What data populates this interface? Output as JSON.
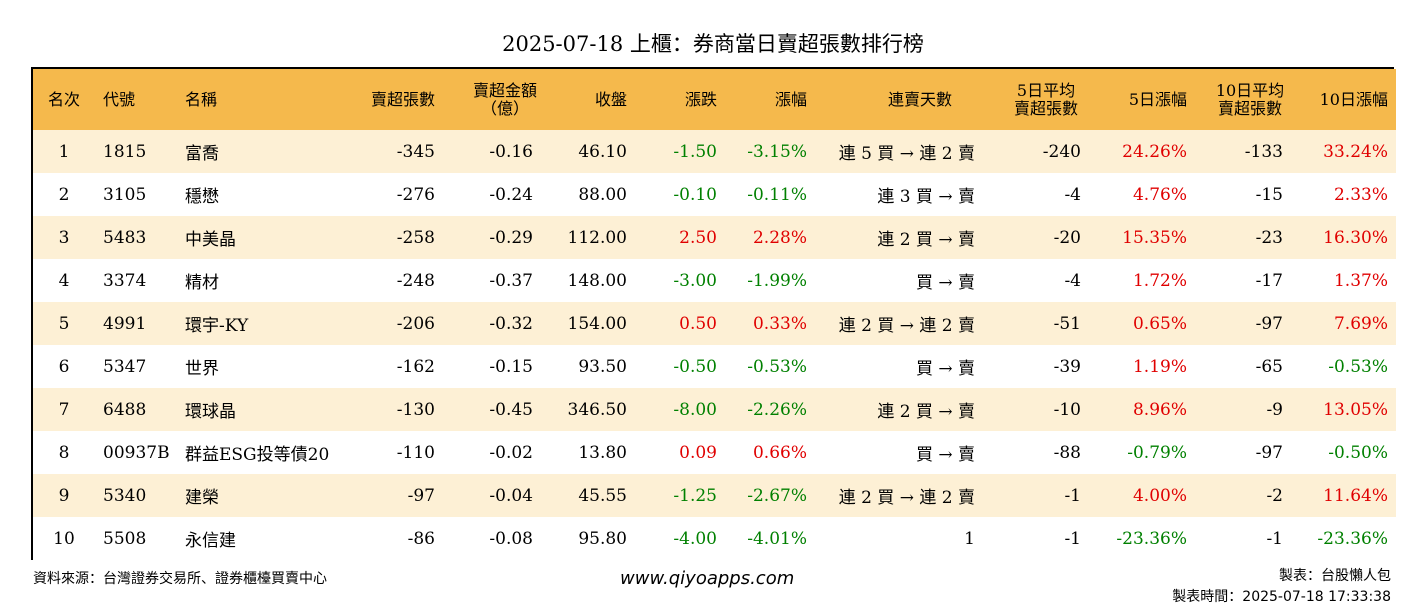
{
  "title": "2025-07-18 上櫃：券商當日賣超張數排行榜",
  "headers": {
    "rank": "名次",
    "code": "代號",
    "name": "名稱",
    "net_sell_lots": "賣超張數",
    "net_sell_amount_1": "賣超金額",
    "net_sell_amount_2": "（億）",
    "close": "收盤",
    "change": "漲跌",
    "change_pct": "漲幅",
    "consecutive": "連賣天數",
    "avg5_1": "5日平均",
    "avg5_2": "賣超張數",
    "pct5": "5日漲幅",
    "avg10_1": "10日平均",
    "avg10_2": "賣超張數",
    "pct10": "10日漲幅"
  },
  "rows": [
    {
      "rank": "1",
      "code": "1815",
      "name": "富喬",
      "lots": "-345",
      "amount": "-0.16",
      "close": "46.10",
      "change": "-1.50",
      "change_pct": "-3.15%",
      "consecutive": "連 5 買 → 連 2 賣",
      "avg5": "-240",
      "pct5": "24.26%",
      "avg10": "-133",
      "pct10": "33.24%"
    },
    {
      "rank": "2",
      "code": "3105",
      "name": "穩懋",
      "lots": "-276",
      "amount": "-0.24",
      "close": "88.00",
      "change": "-0.10",
      "change_pct": "-0.11%",
      "consecutive": "連 3 買 → 賣",
      "avg5": "-4",
      "pct5": "4.76%",
      "avg10": "-15",
      "pct10": "2.33%"
    },
    {
      "rank": "3",
      "code": "5483",
      "name": "中美晶",
      "lots": "-258",
      "amount": "-0.29",
      "close": "112.00",
      "change": "2.50",
      "change_pct": "2.28%",
      "consecutive": "連 2 買 → 賣",
      "avg5": "-20",
      "pct5": "15.35%",
      "avg10": "-23",
      "pct10": "16.30%"
    },
    {
      "rank": "4",
      "code": "3374",
      "name": "精材",
      "lots": "-248",
      "amount": "-0.37",
      "close": "148.00",
      "change": "-3.00",
      "change_pct": "-1.99%",
      "consecutive": "買 → 賣",
      "avg5": "-4",
      "pct5": "1.72%",
      "avg10": "-17",
      "pct10": "1.37%"
    },
    {
      "rank": "5",
      "code": "4991",
      "name": "環宇-KY",
      "lots": "-206",
      "amount": "-0.32",
      "close": "154.00",
      "change": "0.50",
      "change_pct": "0.33%",
      "consecutive": "連 2 買 → 連 2 賣",
      "avg5": "-51",
      "pct5": "0.65%",
      "avg10": "-97",
      "pct10": "7.69%"
    },
    {
      "rank": "6",
      "code": "5347",
      "name": "世界",
      "lots": "-162",
      "amount": "-0.15",
      "close": "93.50",
      "change": "-0.50",
      "change_pct": "-0.53%",
      "consecutive": "買 → 賣",
      "avg5": "-39",
      "pct5": "1.19%",
      "avg10": "-65",
      "pct10": "-0.53%"
    },
    {
      "rank": "7",
      "code": "6488",
      "name": "環球晶",
      "lots": "-130",
      "amount": "-0.45",
      "close": "346.50",
      "change": "-8.00",
      "change_pct": "-2.26%",
      "consecutive": "連 2 買 → 賣",
      "avg5": "-10",
      "pct5": "8.96%",
      "avg10": "-9",
      "pct10": "13.05%"
    },
    {
      "rank": "8",
      "code": "00937B",
      "name": "群益ESG投等債20",
      "lots": "-110",
      "amount": "-0.02",
      "close": "13.80",
      "change": "0.09",
      "change_pct": "0.66%",
      "consecutive": "買 → 賣",
      "avg5": "-88",
      "pct5": "-0.79%",
      "avg10": "-97",
      "pct10": "-0.50%"
    },
    {
      "rank": "9",
      "code": "5340",
      "name": "建榮",
      "lots": "-97",
      "amount": "-0.04",
      "close": "45.55",
      "change": "-1.25",
      "change_pct": "-2.67%",
      "consecutive": "連 2 買 → 連 2 賣",
      "avg5": "-1",
      "pct5": "4.00%",
      "avg10": "-2",
      "pct10": "11.64%"
    },
    {
      "rank": "10",
      "code": "5508",
      "name": "永信建",
      "lots": "-86",
      "amount": "-0.08",
      "close": "95.80",
      "change": "-4.00",
      "change_pct": "-4.01%",
      "consecutive": "1",
      "avg5": "-1",
      "pct5": "-23.36%",
      "avg10": "-1",
      "pct10": "-23.36%"
    }
  ],
  "colors": {
    "up": "#e00000",
    "down": "#008000",
    "header_bg": "#f5b94c",
    "stripe": "#fdf0d5"
  },
  "footer": {
    "source": "資料來源：台灣證券交易所、證券櫃檯買賣中心",
    "website": "www.qiyoapps.com",
    "maker": "製表：台股懶人包",
    "time": "製表時間：2025-07-18 17:33:38"
  }
}
